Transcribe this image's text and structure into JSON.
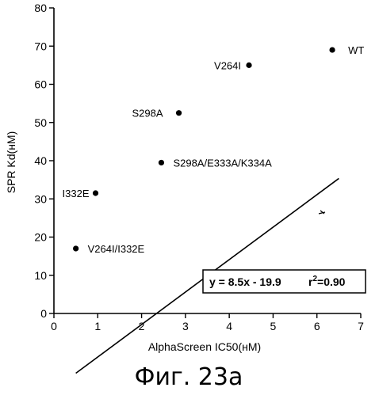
{
  "chart_data": {
    "type": "scatter",
    "xlabel": "AlphaScreen IC50(нМ)",
    "ylabel": "SPR Kd(нМ)",
    "xlim": [
      0,
      7
    ],
    "ylim": [
      0,
      80
    ],
    "xticks": [
      0,
      1,
      2,
      3,
      4,
      5,
      6,
      7
    ],
    "yticks": [
      0,
      10,
      20,
      30,
      40,
      50,
      60,
      70,
      80
    ],
    "points": [
      {
        "label": "WT",
        "x": 6.35,
        "y": 69
      },
      {
        "label": "V264I",
        "x": 4.45,
        "y": 65
      },
      {
        "label": "S298A",
        "x": 2.85,
        "y": 52.5
      },
      {
        "label": "S298A/E333A/K334A",
        "x": 2.45,
        "y": 39.5
      },
      {
        "label": "I332E",
        "x": 0.95,
        "y": 31.5
      },
      {
        "label": "V264I/I332E",
        "x": 0.5,
        "y": 17
      }
    ],
    "trendline": {
      "x_start": 0.5,
      "x_end": 6.5,
      "slope": 8.5,
      "intercept": -19.9
    },
    "equation": "y = 8.5x - 19.9",
    "r2_base": "r",
    "r2_sup": "2",
    "r2_value": "=0.90",
    "grid": false,
    "caption": "Фиг. 23а"
  }
}
